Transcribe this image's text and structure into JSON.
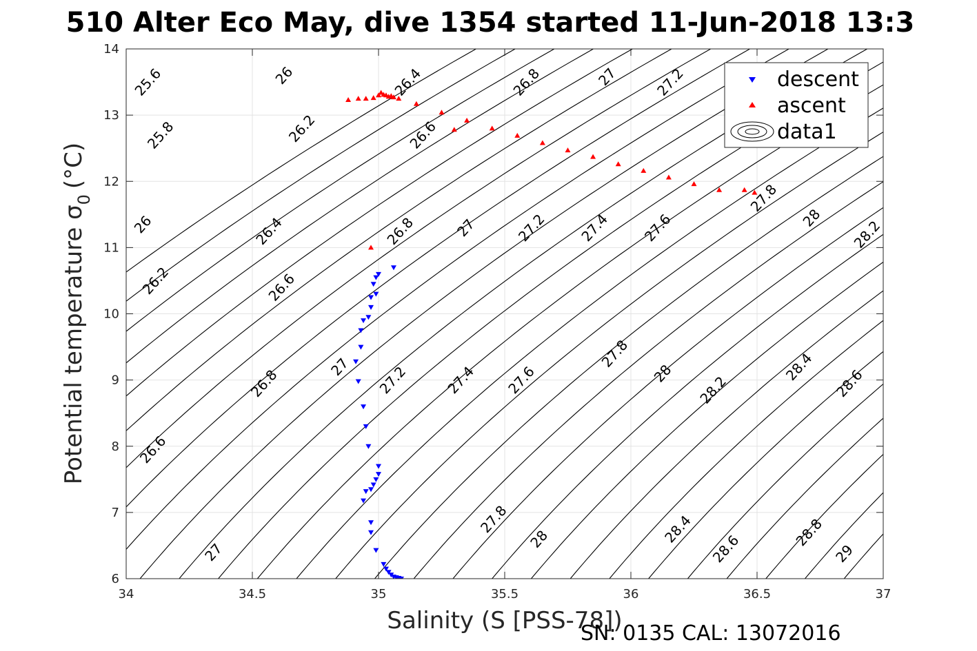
{
  "figure": {
    "title": "510 Alter Eco May, dive 1354 started 11-Jun-2018 13:3",
    "footer": "SN: 0135  CAL: 13072016"
  },
  "chart_data": {
    "type": "scatter",
    "title": "510 Alter Eco May, dive 1354 started 11-Jun-2018 13:3",
    "xlabel": "Salinity (S [PSS-78])",
    "ylabel": "Potential temperature σ",
    "ylabel_subscript": "0",
    "ylabel_suffix": "(°C)",
    "xlim": [
      34,
      37
    ],
    "ylim": [
      6,
      14
    ],
    "xticks": [
      34,
      34.5,
      35,
      35.5,
      36,
      36.5,
      37
    ],
    "xtick_labels": [
      "34",
      "34.5",
      "35",
      "35.5",
      "36",
      "36.5",
      "37"
    ],
    "yticks": [
      6,
      7,
      8,
      9,
      10,
      11,
      12,
      13,
      14
    ],
    "ytick_labels": [
      "6",
      "7",
      "8",
      "9",
      "10",
      "11",
      "12",
      "13",
      "14"
    ],
    "grid": true,
    "legend": {
      "placement": "top-right",
      "entries": [
        "descent",
        "ascent",
        "data1"
      ]
    },
    "series": [
      {
        "name": "descent",
        "marker": "triangle-down",
        "color": "#0000ff",
        "x": [
          35.06,
          35.0,
          34.99,
          34.98,
          34.99,
          34.97,
          34.97,
          34.96,
          34.94,
          34.93,
          34.93,
          34.91,
          34.92,
          34.94,
          34.95,
          34.96,
          35.0,
          35.0,
          34.99,
          34.98,
          34.97,
          34.95,
          34.94,
          34.97,
          34.97,
          34.99,
          35.02,
          35.03,
          35.04,
          35.05,
          35.06,
          35.07,
          35.08,
          35.09
        ],
        "y": [
          10.7,
          10.6,
          10.55,
          10.45,
          10.3,
          10.25,
          10.1,
          9.95,
          9.9,
          9.75,
          9.5,
          9.28,
          8.98,
          8.6,
          8.3,
          8.0,
          7.7,
          7.58,
          7.5,
          7.42,
          7.35,
          7.32,
          7.18,
          6.85,
          6.7,
          6.43,
          6.22,
          6.15,
          6.1,
          6.06,
          6.03,
          6.02,
          6.01,
          6.0
        ]
      },
      {
        "name": "ascent",
        "marker": "triangle-up",
        "color": "#ff0000",
        "x": [
          34.97,
          35.3,
          34.88,
          34.92,
          34.95,
          34.98,
          35.0,
          35.01,
          35.02,
          35.03,
          35.04,
          35.05,
          35.06,
          35.08,
          35.15,
          35.25,
          35.35,
          35.45,
          35.55,
          35.65,
          35.75,
          35.85,
          35.95,
          36.05,
          36.15,
          36.25,
          36.35,
          36.45,
          36.49
        ],
        "y": [
          11.0,
          12.78,
          13.23,
          13.25,
          13.25,
          13.26,
          13.3,
          13.34,
          13.31,
          13.3,
          13.28,
          13.29,
          13.27,
          13.25,
          13.17,
          13.04,
          12.92,
          12.8,
          12.69,
          12.58,
          12.47,
          12.37,
          12.26,
          12.16,
          12.06,
          11.96,
          11.87,
          11.87,
          11.83
        ]
      }
    ],
    "contours": {
      "name": "data1",
      "label_levels": [
        "25.6",
        "25.8",
        "26",
        "26.2",
        "26.4",
        "26.6",
        "26.8",
        "27",
        "27.2",
        "27.4",
        "27.6",
        "27.8",
        "28",
        "28.2",
        "28.4",
        "28.6",
        "28.8",
        "29"
      ],
      "label_positions": [
        {
          "text": "25.6",
          "x": 34.1,
          "y": 13.45
        },
        {
          "text": "26",
          "x": 34.64,
          "y": 13.55
        },
        {
          "text": "25.8",
          "x": 34.15,
          "y": 12.65
        },
        {
          "text": "26.2",
          "x": 34.71,
          "y": 12.75
        },
        {
          "text": "26.4",
          "x": 35.13,
          "y": 13.45
        },
        {
          "text": "26.6",
          "x": 35.19,
          "y": 12.65
        },
        {
          "text": "26.8",
          "x": 35.6,
          "y": 13.45
        },
        {
          "text": "27",
          "x": 35.92,
          "y": 13.53
        },
        {
          "text": "27.2",
          "x": 36.17,
          "y": 13.45
        },
        {
          "text": "26",
          "x": 34.08,
          "y": 11.3
        },
        {
          "text": "26.4",
          "x": 34.58,
          "y": 11.2
        },
        {
          "text": "26.8",
          "x": 35.1,
          "y": 11.2
        },
        {
          "text": "27",
          "x": 35.36,
          "y": 11.25
        },
        {
          "text": "27.2",
          "x": 35.62,
          "y": 11.25
        },
        {
          "text": "27.4",
          "x": 35.87,
          "y": 11.25
        },
        {
          "text": "27.6",
          "x": 36.12,
          "y": 11.25
        },
        {
          "text": "27.8",
          "x": 36.54,
          "y": 11.7
        },
        {
          "text": "28",
          "x": 36.73,
          "y": 11.4
        },
        {
          "text": "28.2",
          "x": 36.95,
          "y": 11.15
        },
        {
          "text": "26.2",
          "x": 34.13,
          "y": 10.45
        },
        {
          "text": "26.6",
          "x": 34.63,
          "y": 10.35
        },
        {
          "text": "26.8",
          "x": 34.56,
          "y": 8.9
        },
        {
          "text": "27",
          "x": 34.86,
          "y": 9.15
        },
        {
          "text": "27.2",
          "x": 35.07,
          "y": 8.95
        },
        {
          "text": "27.4",
          "x": 35.34,
          "y": 8.95
        },
        {
          "text": "27.6",
          "x": 35.58,
          "y": 8.95
        },
        {
          "text": "27.8",
          "x": 35.95,
          "y": 9.35
        },
        {
          "text": "28",
          "x": 36.14,
          "y": 9.05
        },
        {
          "text": "28.2",
          "x": 36.34,
          "y": 8.8
        },
        {
          "text": "28.4",
          "x": 36.68,
          "y": 9.15
        },
        {
          "text": "28.6",
          "x": 36.88,
          "y": 8.9
        },
        {
          "text": "26.6",
          "x": 34.12,
          "y": 7.9
        },
        {
          "text": "27.8",
          "x": 35.47,
          "y": 6.85
        },
        {
          "text": "28",
          "x": 35.65,
          "y": 6.55
        },
        {
          "text": "28.4",
          "x": 36.2,
          "y": 6.7
        },
        {
          "text": "28.6",
          "x": 36.39,
          "y": 6.4
        },
        {
          "text": "28.8",
          "x": 36.72,
          "y": 6.65
        },
        {
          "text": "29",
          "x": 36.86,
          "y": 6.33
        },
        {
          "text": "27",
          "x": 34.36,
          "y": 6.35
        }
      ]
    }
  }
}
